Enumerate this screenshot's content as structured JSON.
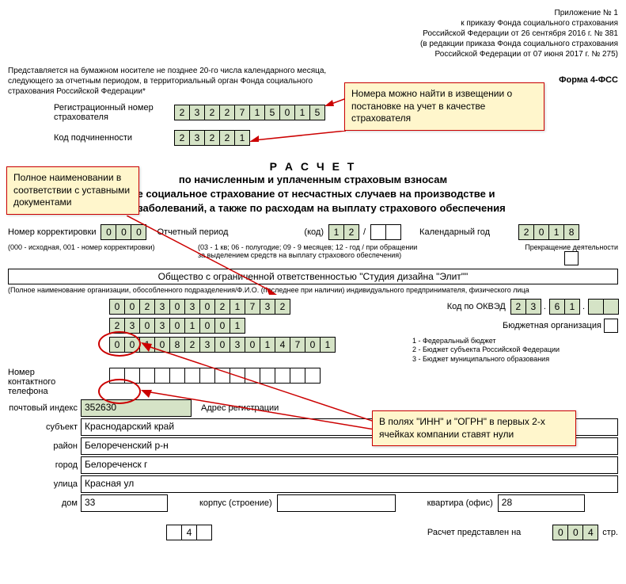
{
  "header": {
    "l1": "Приложение № 1",
    "l2": "к приказу Фонда социального страхования",
    "l3": "Российской Федерации от 26 сентября 2016 г. № 381",
    "l4": "(в редакции приказа Фонда социального страхования",
    "l5": "Российской Федерации от 07 июня 2017 г. № 275)"
  },
  "intro": "Представляется на бумажном носителе не позднее 20-го числа календарного месяца, следующего за отчетным периодом, в территориальный орган Фонда социального страхования Российской Федерации*",
  "form_code": "Форма 4-ФСС",
  "reg_lbl": "Регистрационный номер страхователя",
  "reg_cells": [
    "2",
    "3",
    "2",
    "2",
    "7",
    "1",
    "5",
    "0",
    "1",
    "5"
  ],
  "sub_lbl": "Код подчиненности",
  "sub_cells": [
    "2",
    "3",
    "2",
    "2",
    "1"
  ],
  "title": {
    "main": "Р А С Ч Е Т",
    "s1": "по начисленным и уплаченным страховым взносам",
    "s2": "ое социальное страхование от несчастных случаев на производстве и",
    "s3": "ых заболеваний, а также по расходам на выплату страхового обеспечения"
  },
  "corr_lbl": "Номер корректировки",
  "corr_cells": [
    "0",
    "0",
    "0"
  ],
  "period_lbl": "Отчетный период",
  "period_code_lbl": "(код)",
  "period_cells": [
    "1",
    "2"
  ],
  "year_lbl": "Календарный год",
  "year_cells": [
    "2",
    "0",
    "1",
    "8"
  ],
  "period_note": "(03 - 1 кв; 06 - полугодие; 09 - 9 месяцев; 12 - год / при обращении за выделением средств на выплату страхового обеспечения)",
  "corr_note": "(000 - исходная, 001 - номер корректировки)",
  "cease_lbl": "Прекращение деятельности",
  "org_name": "Общество с ограниченной ответственностью \"Студия дизайна \"Элит\"\"",
  "org_note": "(Полное наименование организации, обособленного подразделения/Ф.И.О. (последнее при наличии) индивидуального предпринимателя, физического лица",
  "inn_cells": [
    "0",
    "0",
    "2",
    "3",
    "0",
    "3",
    "0",
    "2",
    "1",
    "7",
    "3",
    "2"
  ],
  "okved_lbl": "Код по ОКВЭД",
  "okved_a": [
    "2",
    "3"
  ],
  "okved_b": [
    "6",
    "1"
  ],
  "kpp_cells": [
    "2",
    "3",
    "0",
    "3",
    "0",
    "1",
    "0",
    "0",
    "1"
  ],
  "budget_lbl": "Бюджетная организация",
  "budget_opts": {
    "o1": "1 - Федеральный бюджет",
    "o2": "2 - Бюджет субъекта Российской Федерации",
    "o3": "3 - Бюджет муниципального образования"
  },
  "ogrn_cells": [
    "0",
    "0",
    "1",
    "0",
    "8",
    "2",
    "3",
    "0",
    "3",
    "0",
    "1",
    "4",
    "7",
    "0",
    "1"
  ],
  "phone_lbl": "Номер контактного телефона",
  "post_lbl": "почтовый индекс",
  "post_val": "352630",
  "addr_reg_lbl": "Адрес регистрации",
  "addr": {
    "subj_lbl": "субъект",
    "subj": "Краснодарский край",
    "raion_lbl": "район",
    "raion": "Белореченский р-н",
    "gorod_lbl": "город",
    "gorod": "Белореченск г",
    "ul_lbl": "улица",
    "ul": "Красная ул",
    "dom_lbl": "дом",
    "dom": "33",
    "korp_lbl": "корпус (строение)",
    "kv_lbl": "квартира (офис)",
    "kv": "28"
  },
  "pages_cells": [
    "",
    "4",
    ""
  ],
  "pages_lbl": "Расчет представлен на",
  "pages2_cells": [
    "0",
    "0",
    "4"
  ],
  "pages_suffix": "стр.",
  "callouts": {
    "c1": "Номера можно найти в извещении о постановке на учет в качестве страхователя",
    "c2": "Полное наименовании в соответствии с уставными документами",
    "c3": "В полях \"ИНН\" и \"ОГРН\" в первых 2-х ячейках компании ставят нули"
  }
}
